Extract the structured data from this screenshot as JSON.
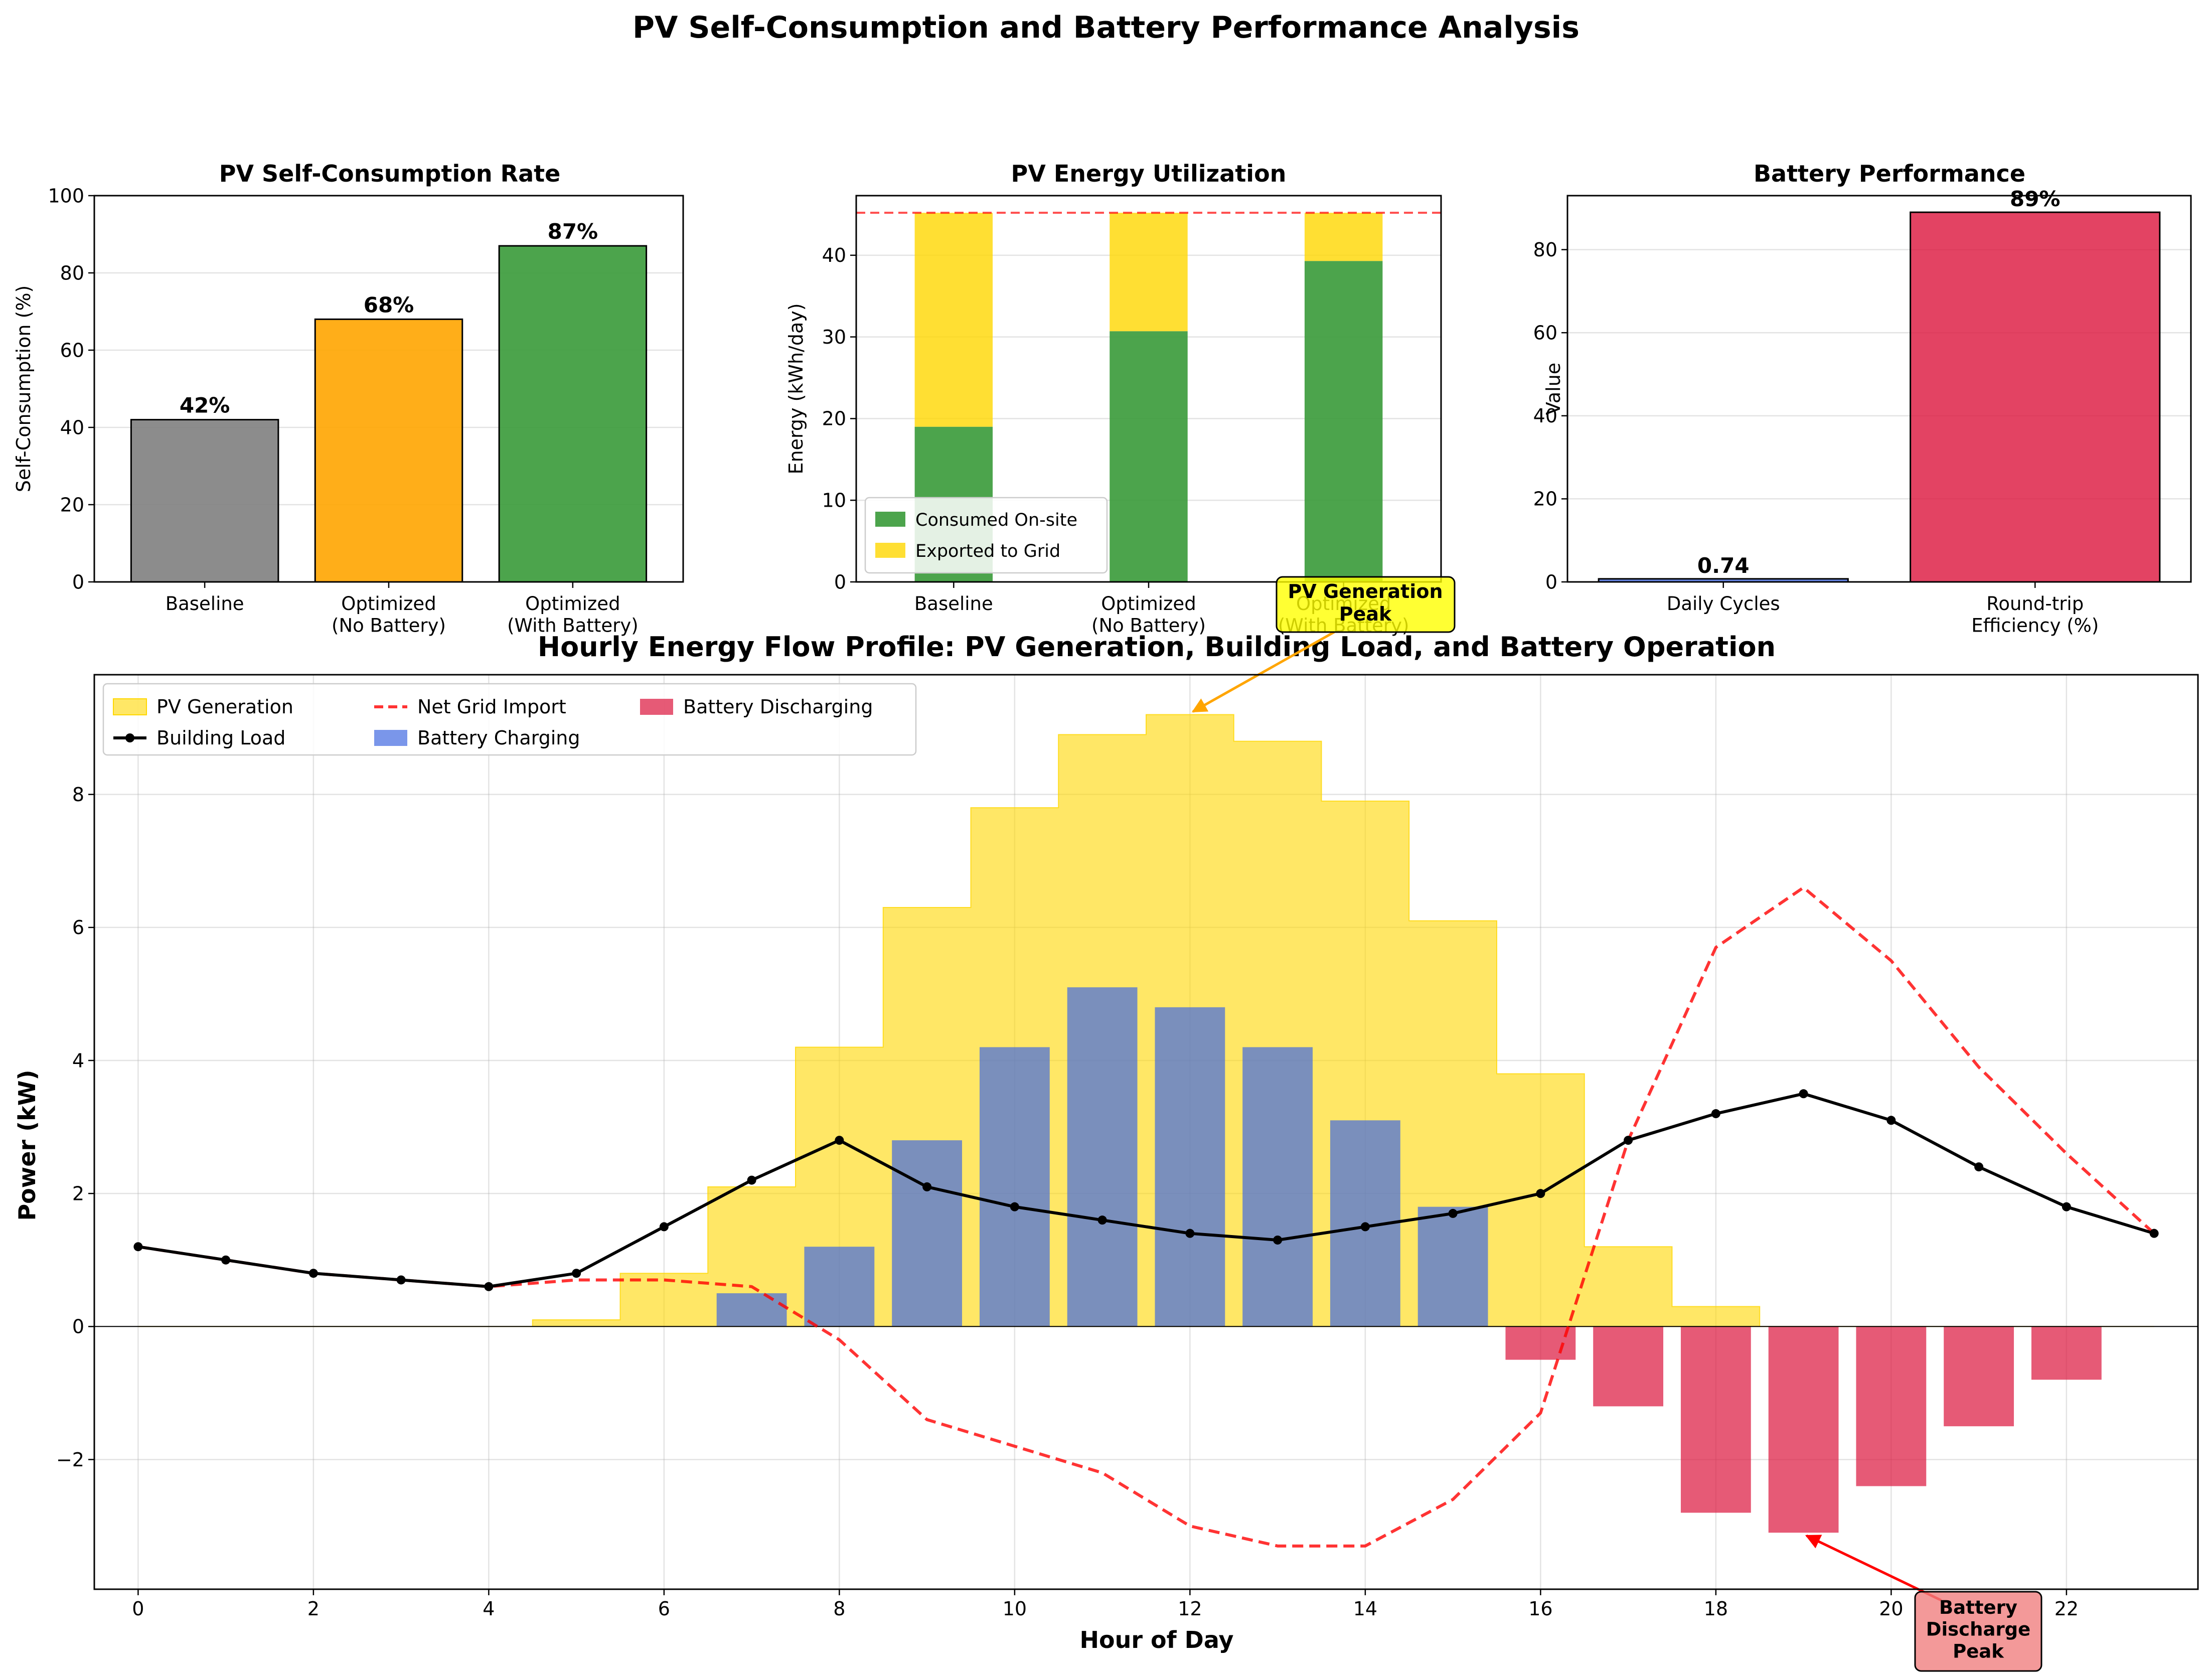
{
  "figure": {
    "title": "PV Self-Consumption and Battery Performance Analysis"
  },
  "colors": {
    "baseline": "#808080",
    "optimized_no_battery": "#FFA500",
    "optimized_with_battery": "#389A38",
    "consumed": "#389A38",
    "exported": "#FFD700",
    "cycles": "#4169E1",
    "efficiency": "#DC143C",
    "pv": "#FFD700",
    "load": "#000000",
    "grid": "#FF0000",
    "charge": "#4169E1",
    "discharge": "#DC143C"
  },
  "chart_data": [
    {
      "type": "bar",
      "title": "PV Self-Consumption Rate",
      "ylabel": "Self-Consumption (%)",
      "ylim": [
        0,
        100
      ],
      "yticks": [
        0,
        20,
        40,
        60,
        80,
        100
      ],
      "grid": true,
      "categories": [
        "Baseline",
        "Optimized\n(No Battery)",
        "Optimized\n(With Battery)"
      ],
      "values": [
        42,
        68,
        87
      ],
      "data_labels": [
        "42%",
        "68%",
        "87%"
      ]
    },
    {
      "type": "bar",
      "stacked": true,
      "title": "PV Energy Utilization",
      "ylabel": "Energy (kWh/day)",
      "ylim": [
        0,
        47.3
      ],
      "yticks": [
        0,
        10,
        20,
        30,
        40
      ],
      "grid": true,
      "total_pv_line": 45.2,
      "categories": [
        "Baseline",
        "Optimized\n(No Battery)",
        "Optimized\n(With Battery)"
      ],
      "series": [
        {
          "name": "Consumed On-site",
          "values": [
            19.0,
            30.7,
            39.3
          ]
        },
        {
          "name": "Exported to Grid",
          "values": [
            26.2,
            14.5,
            5.9
          ]
        }
      ],
      "legend": "lower-left"
    },
    {
      "type": "bar",
      "title": "Battery Performance",
      "ylabel": "Value",
      "ylim": [
        0,
        93
      ],
      "yticks": [
        0,
        20,
        40,
        60,
        80
      ],
      "grid": true,
      "categories": [
        "Daily Cycles",
        "Round-trip\nEfficiency (%)"
      ],
      "values": [
        0.74,
        89
      ],
      "data_labels": [
        "0.74",
        "89%"
      ]
    },
    {
      "type": "line",
      "title": "Hourly Energy Flow Profile: PV Generation, Building Load, and Battery Operation",
      "xlabel": "Hour of Day",
      "ylabel": "Power (kW)",
      "xlim": [
        -0.5,
        23.5
      ],
      "ylim": [
        -3.95,
        9.8
      ],
      "xticks": [
        0,
        2,
        4,
        6,
        8,
        10,
        12,
        14,
        16,
        18,
        20,
        22
      ],
      "yticks": [
        -2,
        0,
        2,
        4,
        6,
        8
      ],
      "grid": true,
      "legend": "top-left",
      "x": [
        0,
        1,
        2,
        3,
        4,
        5,
        6,
        7,
        8,
        9,
        10,
        11,
        12,
        13,
        14,
        15,
        16,
        17,
        18,
        19,
        20,
        21,
        22,
        23
      ],
      "series": [
        {
          "name": "PV Generation",
          "kind": "step-area",
          "values": [
            0,
            0,
            0,
            0,
            0,
            0.1,
            0.8,
            2.1,
            4.2,
            6.3,
            7.8,
            8.9,
            9.2,
            8.8,
            7.9,
            6.1,
            3.8,
            1.2,
            0.3,
            0,
            0,
            0,
            0,
            0
          ]
        },
        {
          "name": "Building Load",
          "kind": "line-marker",
          "values": [
            1.2,
            1.0,
            0.8,
            0.7,
            0.6,
            0.8,
            1.5,
            2.2,
            2.8,
            2.1,
            1.8,
            1.6,
            1.4,
            1.3,
            1.5,
            1.7,
            2.0,
            2.8,
            3.2,
            3.5,
            3.1,
            2.4,
            1.8,
            1.4
          ]
        },
        {
          "name": "Net Grid Import",
          "kind": "dashed-line",
          "values": [
            1.2,
            1.0,
            0.8,
            0.7,
            0.6,
            0.7,
            0.7,
            0.6,
            -0.2,
            -1.4,
            -1.8,
            -2.2,
            -3.0,
            -3.3,
            -3.3,
            -2.6,
            -1.3,
            2.8,
            5.7,
            6.6,
            5.5,
            3.9,
            2.6,
            1.4
          ]
        },
        {
          "name": "Battery Charging",
          "kind": "bar",
          "values": [
            0,
            0,
            0,
            0,
            0,
            0,
            0,
            0.5,
            1.2,
            2.8,
            4.2,
            5.1,
            4.8,
            4.2,
            3.1,
            1.8,
            0,
            0,
            0,
            0,
            0,
            0,
            0,
            0
          ]
        },
        {
          "name": "Battery Discharging",
          "kind": "bar",
          "values": [
            0,
            0,
            0,
            0,
            0,
            0,
            0,
            0,
            0,
            0,
            0,
            0,
            0,
            0,
            0,
            0,
            -0.5,
            -1.2,
            -2.8,
            -3.1,
            -2.4,
            -1.5,
            -0.8,
            0
          ]
        }
      ],
      "annotations": [
        {
          "text": "PV Generation\nPeak",
          "x": 12,
          "y": 9.2
        },
        {
          "text": "Battery\nDischarge\nPeak",
          "x": 19,
          "y": -3.1
        }
      ]
    }
  ]
}
